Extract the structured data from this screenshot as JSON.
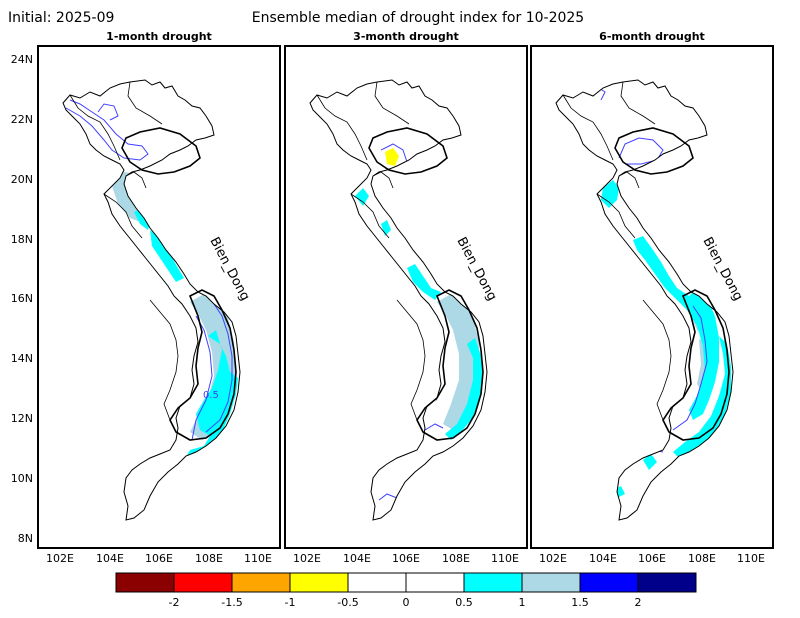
{
  "header": {
    "initial": "Initial: 2025-09",
    "title": "Ensemble median of drought index for 10-2025"
  },
  "lat_ticks": [
    "24N",
    "22N",
    "20N",
    "18N",
    "16N",
    "14N",
    "12N",
    "10N",
    "8N"
  ],
  "lon_ticks": [
    "102E",
    "104E",
    "106E",
    "108E",
    "110E"
  ],
  "sea_label": "Bien_Dong",
  "contour_label": "0.5",
  "panels": [
    {
      "title": "1-month drought"
    },
    {
      "title": "3-month drought"
    },
    {
      "title": "6-month drought"
    }
  ],
  "colorbar": {
    "colors": [
      "#8b0000",
      "#ff0000",
      "#ffa500",
      "#ffff00",
      "#ffffff",
      "#ffffff",
      "#00ffff",
      "#add8e6",
      "#0000ff",
      "#00008b"
    ],
    "labels": [
      "-2",
      "-1.5",
      "-1",
      "-0.5",
      "0",
      "0.5",
      "1",
      "1.5",
      "2"
    ]
  },
  "colors": {
    "above_1": "#00ffff",
    "above_1_5": "#add8e6",
    "contour": "#4040ff",
    "dry": "#ffff00"
  }
}
